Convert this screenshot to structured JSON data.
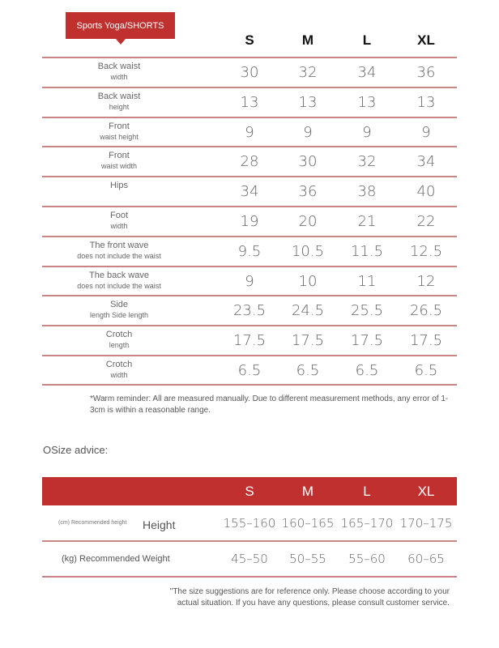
{
  "title": "Sports Yoga/SHORTS",
  "sizes": [
    "S",
    "M",
    "L",
    "XL"
  ],
  "rows": [
    {
      "a": "Back waist",
      "b": "width",
      "v": [
        "30",
        "32",
        "34",
        "36"
      ]
    },
    {
      "a": "Back waist",
      "b": "height",
      "v": [
        "13",
        "13",
        "13",
        "13"
      ]
    },
    {
      "a": "Front",
      "b": "waist height",
      "v": [
        "9",
        "9",
        "9",
        "9"
      ]
    },
    {
      "a": "Front",
      "b": "waist width",
      "v": [
        "28",
        "30",
        "32",
        "34"
      ]
    },
    {
      "a": "Hips",
      "b": "",
      "v": [
        "34",
        "36",
        "38",
        "40"
      ]
    },
    {
      "a": "Foot",
      "b": "width",
      "v": [
        "19",
        "20",
        "21",
        "22"
      ]
    },
    {
      "a": "The front wave",
      "b": "does not include the waist",
      "v": [
        "9.5",
        "10.5",
        "11.5",
        "12.5"
      ]
    },
    {
      "a": "The back wave",
      "b": "does not include the waist",
      "v": [
        "9",
        "10",
        "11",
        "12"
      ]
    },
    {
      "a": "Side",
      "b": "length Side length",
      "v": [
        "23.5",
        "24.5",
        "25.5",
        "26.5"
      ]
    },
    {
      "a": "Crotch",
      "b": "length",
      "v": [
        "17.5",
        "17.5",
        "17.5",
        "17.5"
      ]
    },
    {
      "a": "Crotch",
      "b": "width",
      "v": [
        "6.5",
        "6.5",
        "6.5",
        "6.5"
      ]
    }
  ],
  "note": "*Warm reminder: All are measured manually. Due to different measurement methods, any error of 1-3cm is within a reasonable range.",
  "advice_title": "OSize advice:",
  "advice": {
    "height_small": "(cm) Recommended height",
    "height_label": "Height",
    "height": [
      "155–160",
      "160–165",
      "165–170",
      "170–175"
    ],
    "weight_label": "(kg) Recommended Weight",
    "weight": [
      "45–50",
      "50–55",
      "55–60",
      "60–65"
    ]
  },
  "footnote": "\"The size suggestions are for reference only. Please choose according to your actual situation. If you have any questions, please consult customer service.",
  "colors": {
    "accent": "#c0302f",
    "rule": "#c98585"
  }
}
